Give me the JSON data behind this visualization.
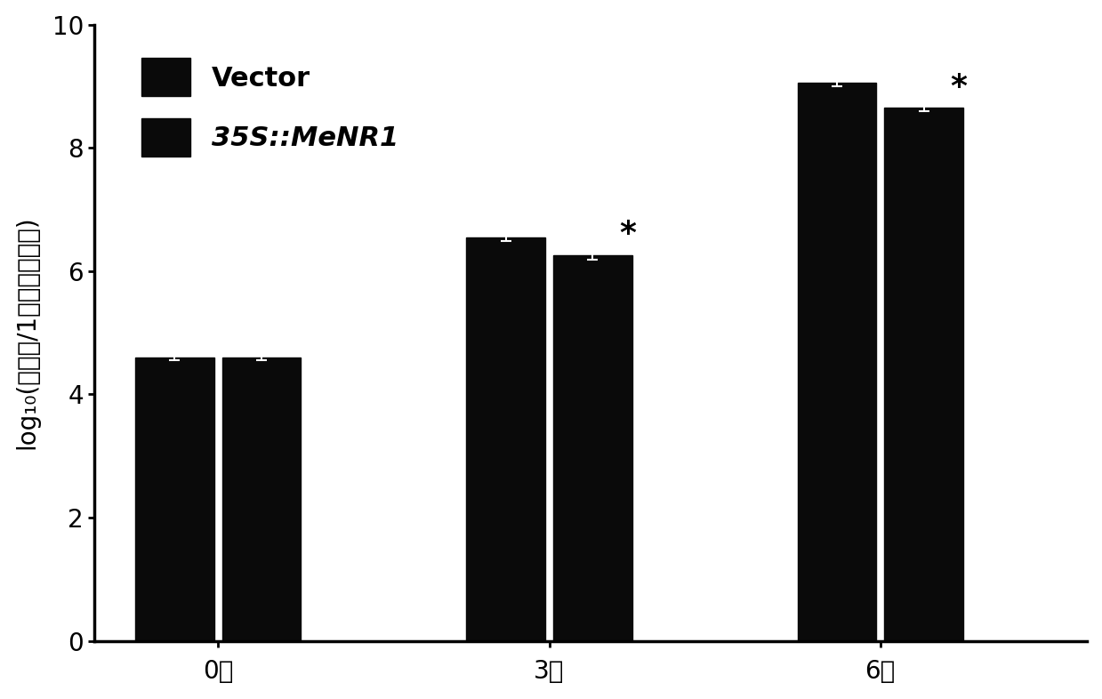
{
  "groups": [
    "0天",
    "3天",
    "6天"
  ],
  "vector_values": [
    4.6,
    6.55,
    9.05
  ],
  "menr1_values": [
    4.6,
    6.25,
    8.65
  ],
  "vector_errors": [
    0.04,
    0.06,
    0.05
  ],
  "menr1_errors": [
    0.04,
    0.07,
    0.05
  ],
  "bar_color": "#0a0a0a",
  "bar_width": 0.38,
  "ylim": [
    0,
    10
  ],
  "yticks": [
    0,
    2,
    4,
    6,
    8,
    10
  ],
  "ylabel_parts": [
    "log",
    "10",
    "(细菌数/1平方厘米叶片)"
  ],
  "legend_label_vector": "Vector",
  "legend_label_menr1": "35S::MeNR1",
  "significance_indices": [
    1,
    2
  ],
  "background_color": "#ffffff",
  "ylabel_fontsize": 20,
  "tick_fontsize": 20,
  "legend_fontsize": 22,
  "star_fontsize": 26,
  "spine_linewidth": 2.5
}
